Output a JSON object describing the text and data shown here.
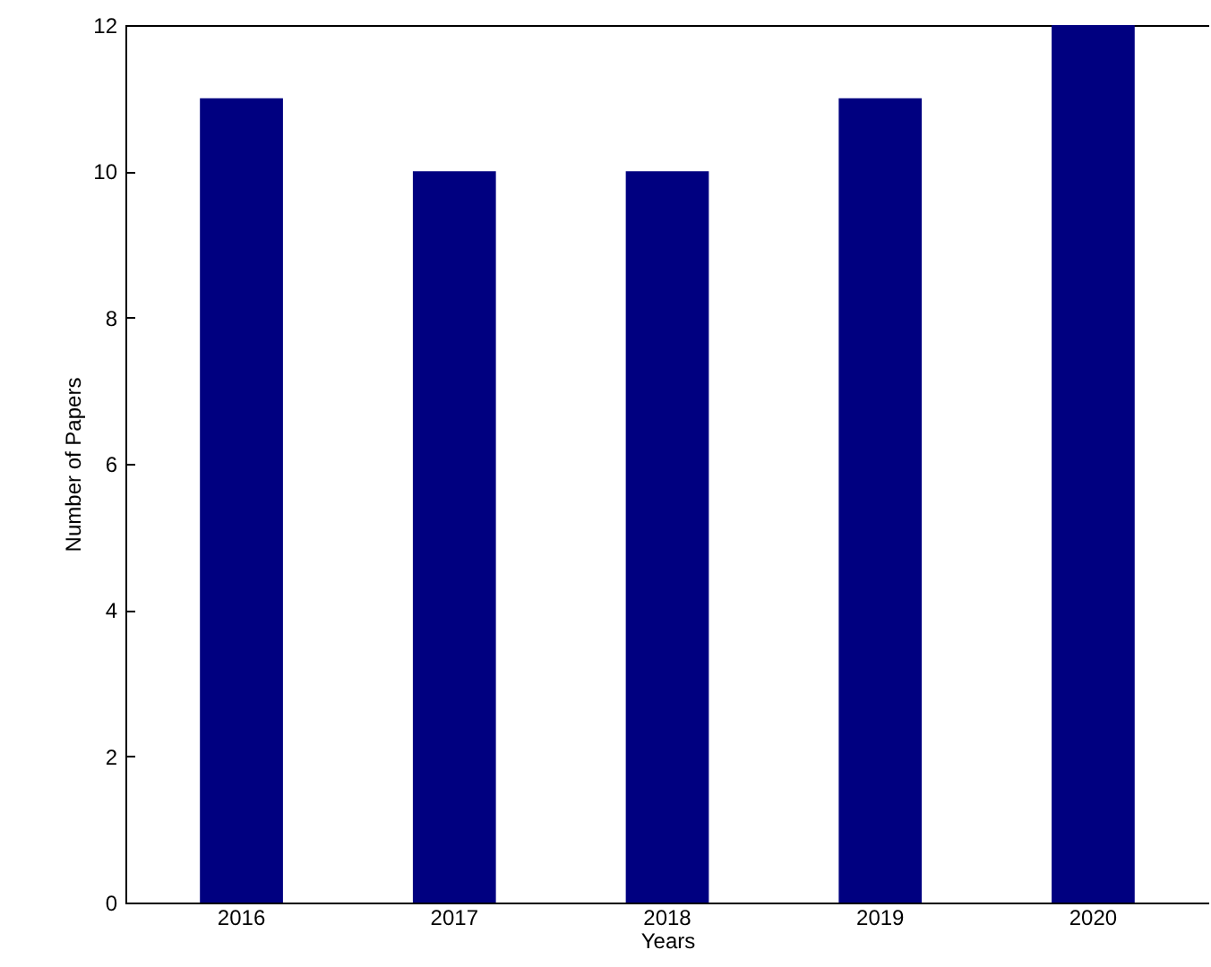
{
  "chart_data": {
    "type": "bar",
    "xlabel": "Years",
    "ylabel": "Number of Papers",
    "categories": [
      "2016",
      "2017",
      "2018",
      "2019",
      "2020"
    ],
    "values": [
      11,
      10,
      10,
      11,
      12
    ],
    "color": "#000080",
    "ylim": [
      0,
      12
    ],
    "yticks": [
      0,
      2,
      4,
      6,
      8,
      10,
      12
    ],
    "grid": false
  }
}
